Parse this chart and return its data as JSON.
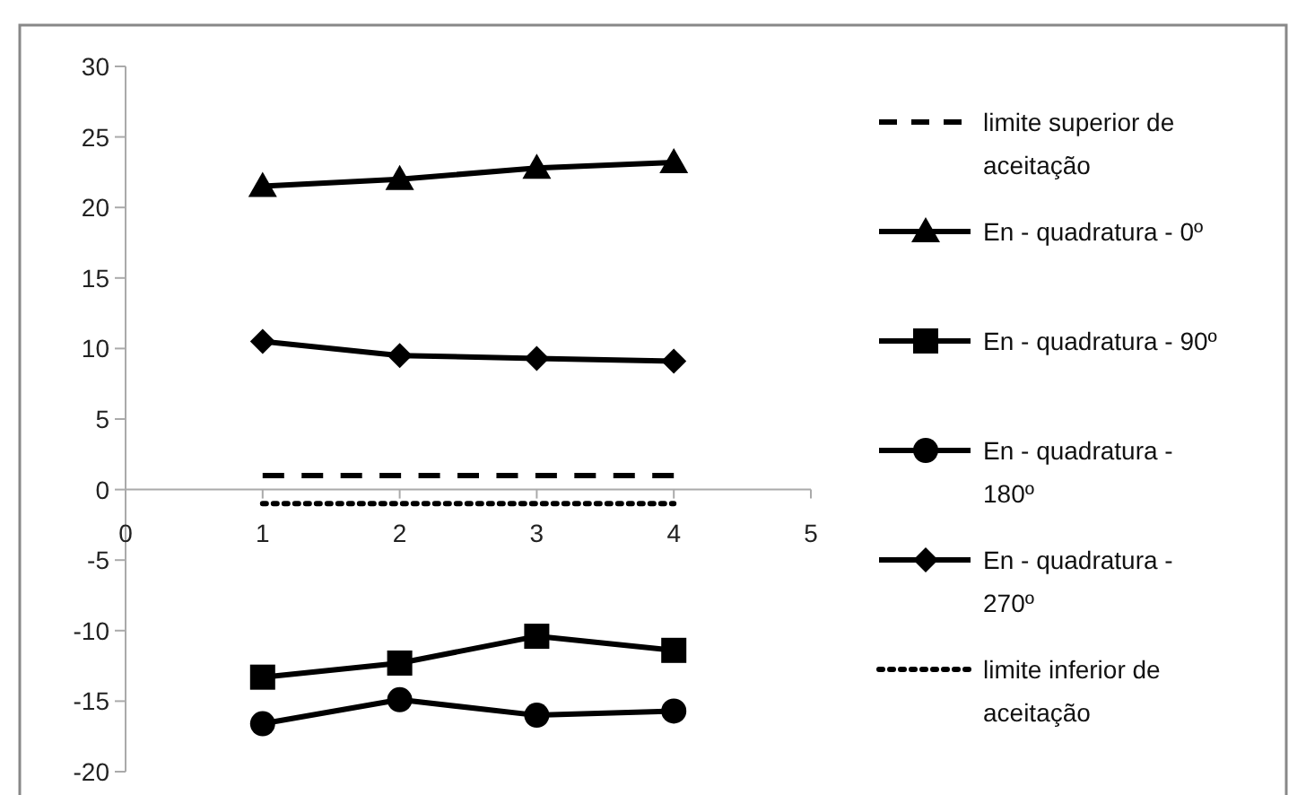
{
  "chart_data": {
    "type": "line",
    "x": [
      1,
      2,
      3,
      4
    ],
    "xlim": [
      0,
      5
    ],
    "xticks": [
      0,
      1,
      2,
      3,
      4,
      5
    ],
    "ylim": [
      -20,
      30
    ],
    "yticks": [
      -20,
      -15,
      -10,
      -5,
      0,
      5,
      10,
      15,
      20,
      25,
      30
    ],
    "grid": false,
    "legend": "right",
    "series": [
      {
        "name": "limite superior de aceitação",
        "color": "#000000",
        "values": [
          1,
          1,
          1,
          1
        ],
        "line_style": "dashed",
        "marker": "none"
      },
      {
        "name": "En - quadratura - 0º",
        "color": "#000000",
        "values": [
          21.5,
          22.0,
          22.8,
          23.2
        ],
        "line_style": "solid",
        "marker": "triangle"
      },
      {
        "name": "En - quadratura - 90º",
        "color": "#000000",
        "values": [
          -13.3,
          -12.3,
          -10.4,
          -11.4
        ],
        "line_style": "solid",
        "marker": "square"
      },
      {
        "name": "En - quadratura - 180º",
        "color": "#000000",
        "values": [
          -16.6,
          -14.9,
          -16.0,
          -15.7
        ],
        "line_style": "solid",
        "marker": "circle"
      },
      {
        "name": "En - quadratura - 270º",
        "color": "#000000",
        "values": [
          10.5,
          9.5,
          9.3,
          9.1
        ],
        "line_style": "solid",
        "marker": "diamond"
      },
      {
        "name": "limite inferior de aceitação",
        "color": "#000000",
        "values": [
          -1,
          -1,
          -1,
          -1
        ],
        "line_style": "dotted",
        "marker": "none"
      }
    ]
  }
}
